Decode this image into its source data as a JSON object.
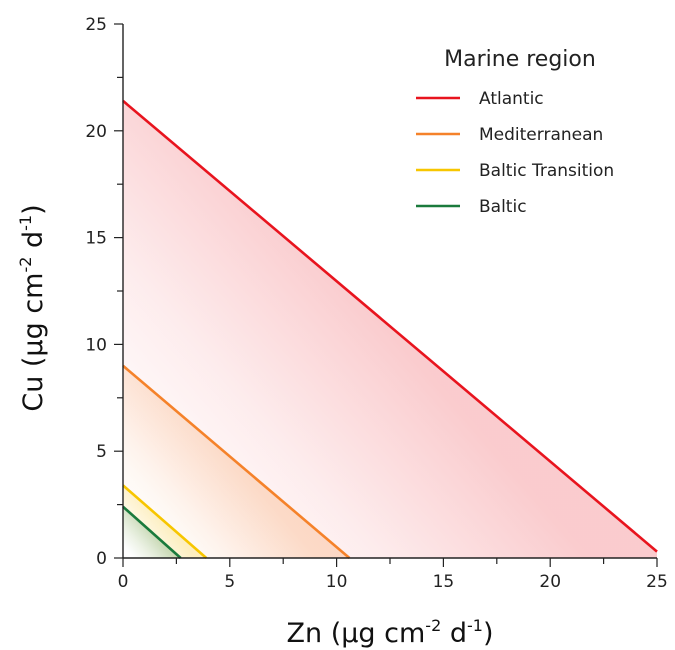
{
  "chart_data": {
    "type": "line",
    "title": "",
    "xlabel": "Zn (μg cm-2 d-1)",
    "ylabel": "Cu (μg cm-2 d-1)",
    "xlabel_parts": {
      "base": "Zn (μg cm",
      "sup1": "-2",
      "mid": " d",
      "sup2": "-1",
      "end": ")"
    },
    "ylabel_parts": {
      "base": "Cu (μg cm",
      "sup1": "-2",
      "mid": " d",
      "sup2": "-1",
      "end": ")"
    },
    "xlim": [
      0,
      25
    ],
    "ylim": [
      0,
      25
    ],
    "xticks": [
      0,
      5,
      10,
      15,
      20,
      25
    ],
    "yticks": [
      0,
      5,
      10,
      15,
      20,
      25
    ],
    "grid": false,
    "legend": {
      "title": "Marine region",
      "position": "top-right"
    },
    "series": [
      {
        "name": "Atlantic",
        "color": "#e8141e",
        "x": [
          0,
          25
        ],
        "y": [
          21.4,
          0.3
        ]
      },
      {
        "name": "Mediterranean",
        "color": "#f5822a",
        "x": [
          0,
          10.6
        ],
        "y": [
          9.0,
          0
        ]
      },
      {
        "name": "Baltic Transition",
        "color": "#f7c600",
        "x": [
          0,
          3.9
        ],
        "y": [
          3.4,
          0
        ]
      },
      {
        "name": "Baltic",
        "color": "#1a7a3c",
        "x": [
          0,
          2.7
        ],
        "y": [
          2.4,
          0
        ]
      }
    ]
  }
}
